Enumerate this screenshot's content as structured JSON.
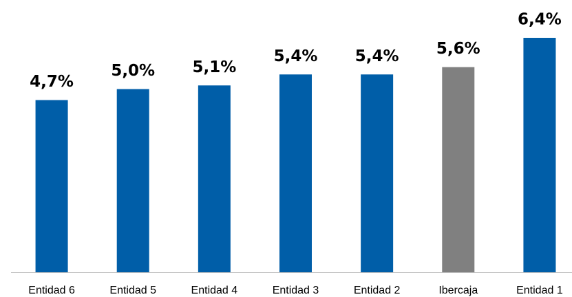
{
  "chart_data": {
    "type": "bar",
    "categories": [
      "Entidad 6",
      "Entidad 5",
      "Entidad 4",
      "Entidad 3",
      "Entidad 2",
      "Ibercaja",
      "Entidad 1"
    ],
    "values": [
      4.7,
      5.0,
      5.1,
      5.4,
      5.4,
      5.6,
      6.4
    ],
    "value_labels": [
      "4,7%",
      "5,0%",
      "5,1%",
      "5,4%",
      "5,4%",
      "5,6%",
      "6,4%"
    ],
    "colors": [
      "#005ea8",
      "#005ea8",
      "#005ea8",
      "#005ea8",
      "#005ea8",
      "#808080",
      "#005ea8"
    ]
  }
}
